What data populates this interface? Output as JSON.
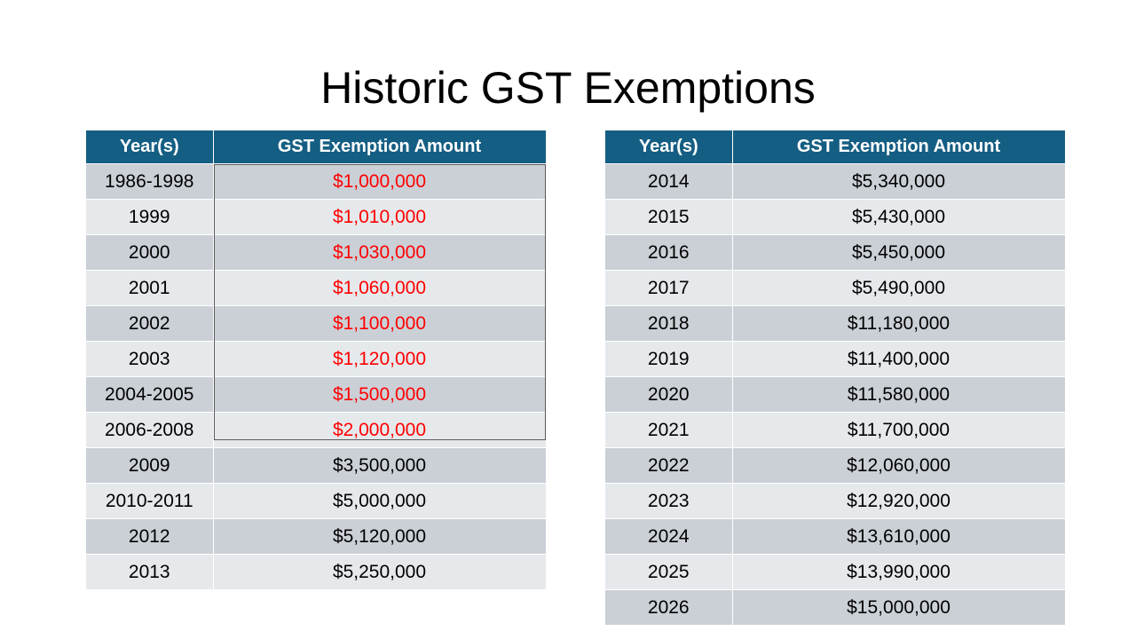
{
  "title": "Historic GST Exemptions",
  "left_table": {
    "headers": [
      "Year(s)",
      "GST Exemption Amount"
    ],
    "rows": [
      {
        "year": "1986-1998",
        "amount": "$1,000,000",
        "highlight": true
      },
      {
        "year": "1999",
        "amount": "$1,010,000",
        "highlight": true
      },
      {
        "year": "2000",
        "amount": "$1,030,000",
        "highlight": true
      },
      {
        "year": "2001",
        "amount": "$1,060,000",
        "highlight": true
      },
      {
        "year": "2002",
        "amount": "$1,100,000",
        "highlight": true
      },
      {
        "year": "2003",
        "amount": "$1,120,000",
        "highlight": true
      },
      {
        "year": "2004-2005",
        "amount": "$1,500,000",
        "highlight": true
      },
      {
        "year": "2006-2008",
        "amount": "$2,000,000",
        "highlight": true
      },
      {
        "year": "2009",
        "amount": "$3,500,000",
        "highlight": false
      },
      {
        "year": "2010-2011",
        "amount": "$5,000,000",
        "highlight": false
      },
      {
        "year": "2012",
        "amount": "$5,120,000",
        "highlight": false
      },
      {
        "year": "2013",
        "amount": "$5,250,000",
        "highlight": false
      }
    ]
  },
  "right_table": {
    "headers": [
      "Year(s)",
      "GST Exemption Amount"
    ],
    "rows": [
      {
        "year": "2014",
        "amount": "$5,340,000"
      },
      {
        "year": "2015",
        "amount": "$5,430,000"
      },
      {
        "year": "2016",
        "amount": "$5,450,000"
      },
      {
        "year": "2017",
        "amount": "$5,490,000"
      },
      {
        "year": "2018",
        "amount": "$11,180,000"
      },
      {
        "year": "2019",
        "amount": "$11,400,000"
      },
      {
        "year": "2020",
        "amount": "$11,580,000"
      },
      {
        "year": "2021",
        "amount": "$11,700,000"
      },
      {
        "year": "2022",
        "amount": "$12,060,000"
      },
      {
        "year": "2023",
        "amount": "$12,920,000"
      },
      {
        "year": "2024",
        "amount": "$13,610,000"
      },
      {
        "year": "2025",
        "amount": "$13,990,000"
      },
      {
        "year": "2026",
        "amount": "$15,000,000"
      }
    ]
  },
  "colors": {
    "header_bg": "#155e83",
    "header_text": "#ffffff",
    "row_dark": "#cbd0d7",
    "row_light": "#e6e9ec",
    "highlight_text": "#ff0000"
  }
}
